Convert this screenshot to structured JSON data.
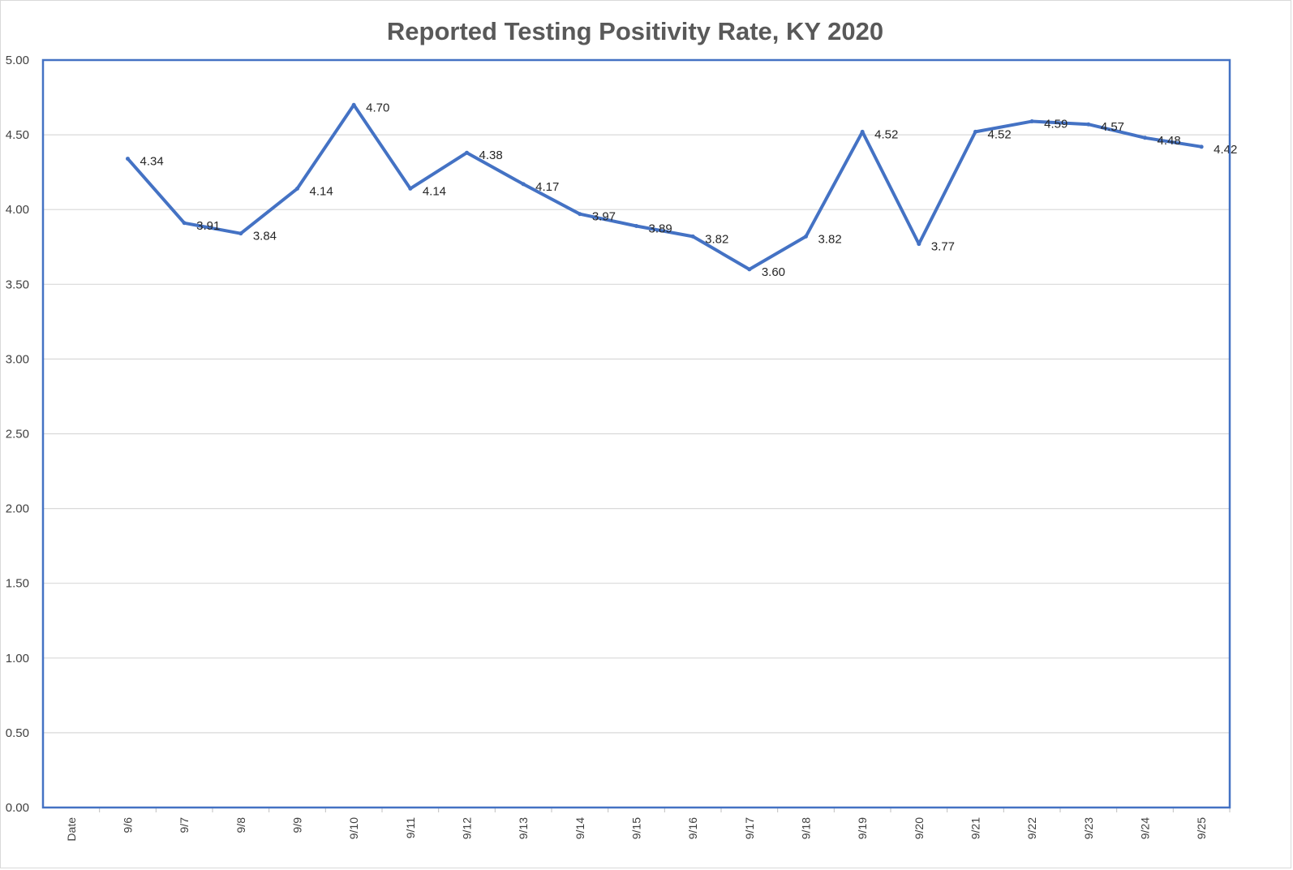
{
  "chart_data": {
    "type": "line",
    "title": "Reported Testing Positivity Rate, KY 2020",
    "xlabel": "",
    "ylabel": "",
    "categories": [
      "Date",
      "9/6",
      "9/7",
      "9/8",
      "9/9",
      "9/10",
      "9/11",
      "9/12",
      "9/13",
      "9/14",
      "9/15",
      "9/16",
      "9/17",
      "9/18",
      "9/19",
      "9/20",
      "9/21",
      "9/22",
      "9/23",
      "9/24",
      "9/25"
    ],
    "series": [
      {
        "values": [
          null,
          4.34,
          3.91,
          3.84,
          4.14,
          4.7,
          4.14,
          4.38,
          4.17,
          3.97,
          3.89,
          3.82,
          3.6,
          3.82,
          4.52,
          3.77,
          4.52,
          4.59,
          4.57,
          4.48,
          4.42
        ],
        "labels": [
          "",
          "4.34",
          "3.91",
          "3.84",
          "4.14",
          "4.70",
          "4.14",
          "4.38",
          "4.17",
          "3.97",
          "3.89",
          "3.82",
          "3.60",
          "3.82",
          "4.52",
          "3.77",
          "4.52",
          "4.59",
          "4.57",
          "4.48",
          "4.42"
        ],
        "color": "#4472c4"
      }
    ],
    "ylim": [
      0,
      5
    ],
    "yticks": [
      "0.00",
      "0.50",
      "1.00",
      "1.50",
      "2.00",
      "2.50",
      "3.00",
      "3.50",
      "4.00",
      "4.50",
      "5.00"
    ],
    "grid": true,
    "legend": "none",
    "colors": {
      "line": "#4472c4",
      "plot_border": "#4472c4",
      "grid": "#d9d9d9"
    }
  }
}
